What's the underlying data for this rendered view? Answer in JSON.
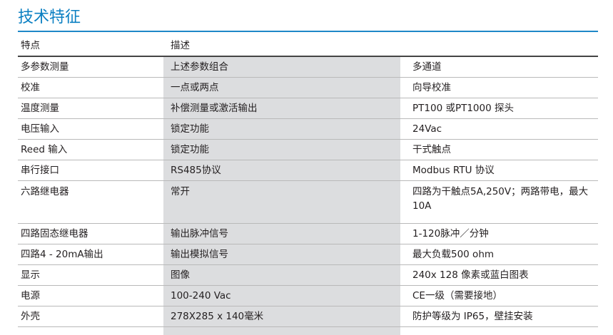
{
  "title": "技术特征",
  "headers": [
    "特点",
    "描述",
    ""
  ],
  "rows": [
    [
      "多参数测量",
      "上述参数组合",
      "多通道"
    ],
    [
      "校准",
      "一点或两点",
      "向导校准"
    ],
    [
      "温度测量",
      "补偿测量或激活输出",
      "PT100 或PT1000 探头"
    ],
    [
      "电压输入",
      "锁定功能",
      "24Vac"
    ],
    [
      "Reed 输入",
      "锁定功能",
      "干式触点"
    ],
    [
      "串行接口",
      "RS485协议",
      "Modbus RTU 协议"
    ],
    [
      "六路继电器",
      "常开",
      "四路为干触点5A,250V；两路带电，最大10A"
    ],
    [
      "四路固态继电器",
      "输出脉冲信号",
      "1-120脉冲／分钟"
    ],
    [
      "四路4 - 20mA输出",
      "输出模拟信号",
      "最大负载500 ohm"
    ],
    [
      "显示",
      "图像",
      "240x 128 像素或蓝白图表"
    ],
    [
      "电源",
      "100-240 Vac",
      "CE一级（需要接地）"
    ],
    [
      "外壳",
      "278X285 x 140毫米",
      "防护等级为 IP65，壁挂安装"
    ]
  ],
  "colors": {
    "title": "#0a7fc2",
    "shade": "#dcdddf"
  }
}
